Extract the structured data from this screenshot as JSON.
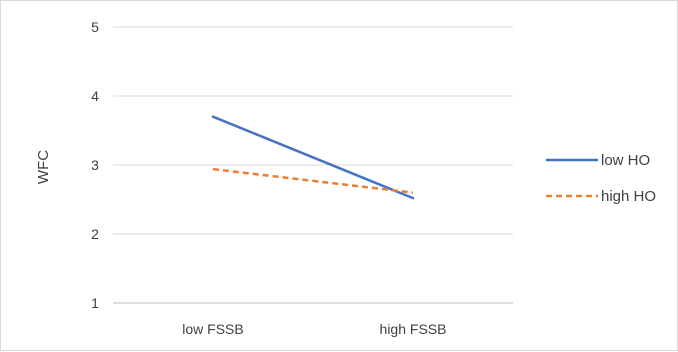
{
  "chart_data": {
    "type": "line",
    "title": "",
    "xlabel": "",
    "ylabel": "WFC",
    "categories": [
      "low FSSB",
      "high FSSB"
    ],
    "ylim": [
      1,
      5
    ],
    "yticks": [
      "1",
      "2",
      "3",
      "4",
      "5"
    ],
    "grid": true,
    "legend_position": "right",
    "series": [
      {
        "name": "low HO",
        "values": [
          3.7,
          2.52
        ],
        "color": "#4472c4",
        "dash": "solid"
      },
      {
        "name": "high HO",
        "values": [
          2.94,
          2.6
        ],
        "color": "#ed7d31",
        "dash": "dashed"
      }
    ]
  }
}
